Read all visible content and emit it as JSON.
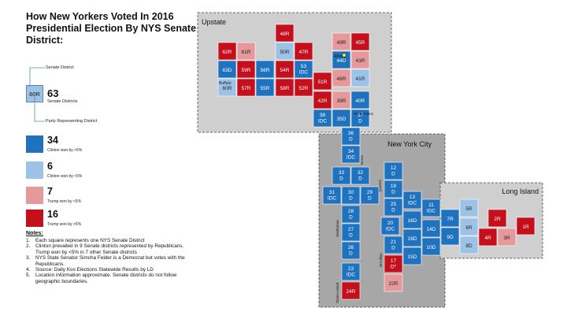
{
  "chart_data": {
    "type": "tile-map",
    "title": "How New Yorkers Voted In 2016 Presidential Election By NYS Senate District:",
    "colors": {
      "clinton_gt5": "#1f72be",
      "clinton_lt5": "#9cc3e6",
      "trump_lt5": "#e5999b",
      "trump_gt5": "#c40f1c",
      "region_bg": "#cfcfcf",
      "nyc_bg": "#a7a7a7"
    },
    "legend_example": {
      "box_label": "60R",
      "total": "63",
      "total_label": "Senate Districts",
      "senate_district_label": "Senate District",
      "party_label": "Party Representing District"
    },
    "legend": [
      {
        "count": "34",
        "label": "Clinton won by >5%",
        "category": "clinton_gt5"
      },
      {
        "count": "6",
        "label": "Clinton won by <5%",
        "category": "clinton_lt5"
      },
      {
        "count": "7",
        "label": "Trump won by <5%",
        "category": "trump_lt5"
      },
      {
        "count": "16",
        "label": "Trump won by >5%",
        "category": "trump_gt5"
      }
    ],
    "regions": [
      {
        "name": "Upstate"
      },
      {
        "name": "New York City"
      },
      {
        "name": "Long Island"
      }
    ],
    "place_labels": [
      "Buffalo",
      "Albany",
      "White Plains",
      "Bronx",
      "Queens",
      "Manhattan",
      "Brooklyn",
      "Staten Island"
    ],
    "districts": [
      {
        "label": "48R",
        "category": "trump_gt5"
      },
      {
        "label": "62R",
        "category": "trump_gt5"
      },
      {
        "label": "61R",
        "category": "trump_lt5"
      },
      {
        "label": "50R",
        "category": "clinton_lt5"
      },
      {
        "label": "47R",
        "category": "trump_gt5"
      },
      {
        "label": "49R",
        "category": "trump_lt5"
      },
      {
        "label": "45R",
        "category": "trump_gt5"
      },
      {
        "label": "63D",
        "category": "clinton_gt5"
      },
      {
        "label": "59R",
        "category": "trump_gt5"
      },
      {
        "label": "56R",
        "category": "clinton_gt5"
      },
      {
        "label": "54R",
        "category": "trump_gt5"
      },
      {
        "label": "53 IDC",
        "category": "clinton_gt5"
      },
      {
        "label": "44D",
        "category": "clinton_gt5"
      },
      {
        "label": "43R",
        "category": "trump_lt5"
      },
      {
        "label": "60R",
        "category": "clinton_lt5"
      },
      {
        "label": "57R",
        "category": "trump_gt5"
      },
      {
        "label": "55R",
        "category": "clinton_gt5"
      },
      {
        "label": "58R",
        "category": "trump_gt5"
      },
      {
        "label": "52R",
        "category": "trump_gt5"
      },
      {
        "label": "51R",
        "category": "trump_gt5"
      },
      {
        "label": "46R",
        "category": "trump_lt5"
      },
      {
        "label": "41R",
        "category": "clinton_lt5"
      },
      {
        "label": "42R",
        "category": "trump_gt5"
      },
      {
        "label": "39R",
        "category": "trump_lt5"
      },
      {
        "label": "40R",
        "category": "clinton_gt5"
      },
      {
        "label": "38 IDC",
        "category": "clinton_gt5"
      },
      {
        "label": "35D",
        "category": "clinton_gt5"
      },
      {
        "label": "37 D",
        "category": "clinton_gt5"
      },
      {
        "label": "36 D",
        "category": "clinton_gt5"
      },
      {
        "label": "34 IDC",
        "category": "clinton_gt5"
      },
      {
        "label": "33 D",
        "category": "clinton_gt5"
      },
      {
        "label": "32 D",
        "category": "clinton_gt5"
      },
      {
        "label": "31 IDC",
        "category": "clinton_gt5"
      },
      {
        "label": "30 D",
        "category": "clinton_gt5"
      },
      {
        "label": "29 D",
        "category": "clinton_gt5"
      },
      {
        "label": "28 D",
        "category": "clinton_gt5"
      },
      {
        "label": "27 D",
        "category": "clinton_gt5"
      },
      {
        "label": "26 D",
        "category": "clinton_gt5"
      },
      {
        "label": "23 IDC",
        "category": "clinton_gt5"
      },
      {
        "label": "24R",
        "category": "trump_gt5"
      },
      {
        "label": "12 D",
        "category": "clinton_gt5"
      },
      {
        "label": "18 D",
        "category": "clinton_gt5"
      },
      {
        "label": "25 D",
        "category": "clinton_gt5"
      },
      {
        "label": "20 IDC",
        "category": "clinton_gt5"
      },
      {
        "label": "21 D",
        "category": "clinton_gt5"
      },
      {
        "label": "17 D*",
        "category": "trump_gt5"
      },
      {
        "label": "22R",
        "category": "trump_lt5"
      },
      {
        "label": "13 IDC",
        "category": "clinton_gt5"
      },
      {
        "label": "16D",
        "category": "clinton_gt5"
      },
      {
        "label": "19D",
        "category": "clinton_gt5"
      },
      {
        "label": "15D",
        "category": "clinton_gt5"
      },
      {
        "label": "11 IDC",
        "category": "clinton_gt5"
      },
      {
        "label": "14D",
        "category": "clinton_gt5"
      },
      {
        "label": "10D",
        "category": "clinton_gt5"
      },
      {
        "label": "7R",
        "category": "clinton_gt5"
      },
      {
        "label": "9D",
        "category": "clinton_gt5"
      },
      {
        "label": "5R",
        "category": "clinton_lt5"
      },
      {
        "label": "6R",
        "category": "clinton_lt5"
      },
      {
        "label": "8D",
        "category": "clinton_lt5"
      },
      {
        "label": "2R",
        "category": "trump_gt5"
      },
      {
        "label": "4R",
        "category": "trump_gt5"
      },
      {
        "label": "3R",
        "category": "trump_lt5"
      },
      {
        "label": "1R",
        "category": "trump_gt5"
      }
    ],
    "notes_title": "Notes:",
    "notes": [
      "Each square represents one NYS Senate District",
      "Clinton prevailed in 9 Senate districts represented by Republicans. Trump won by <5% in 7 other Senate districts",
      "NYS State Senator Simcha Felder is a Democrat but votes with the Republicans.",
      "Source: Daily Kos Elections Statewide Results by LD",
      "Location information approximate. Senate districts do not follow geographic boundaries."
    ]
  }
}
